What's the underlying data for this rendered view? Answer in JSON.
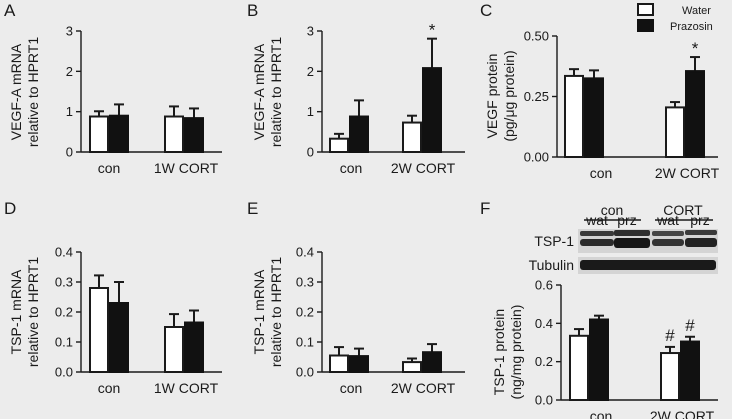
{
  "colors": {
    "background": "#ececec",
    "water": "#ffffff",
    "prazosin": "#111111",
    "ink": "#1a1a1a"
  },
  "legend": {
    "water_label": "Water",
    "prazosin_label": "Prazosin"
  },
  "chart_data": [
    {
      "panel": "A",
      "type": "bar",
      "ylabel": [
        "VEGF-A mRNA",
        "relative to HPRT1"
      ],
      "ylim": [
        0,
        3
      ],
      "yticks": [
        "0",
        "1",
        "2",
        "3"
      ],
      "categories": [
        "con",
        "1W CORT"
      ],
      "series": [
        {
          "name": "Water",
          "values": [
            0.88,
            0.88
          ],
          "errors": [
            0.13,
            0.25
          ]
        },
        {
          "name": "Prazosin",
          "values": [
            0.9,
            0.84
          ],
          "errors": [
            0.28,
            0.24
          ]
        }
      ],
      "annotations": []
    },
    {
      "panel": "B",
      "type": "bar",
      "ylabel": [
        "VEGF-A mRNA",
        "relative to HPRT1"
      ],
      "ylim": [
        0,
        3
      ],
      "yticks": [
        "0",
        "1",
        "2",
        "3"
      ],
      "categories": [
        "con",
        "2W CORT"
      ],
      "series": [
        {
          "name": "Water",
          "values": [
            0.33,
            0.73
          ],
          "errors": [
            0.12,
            0.17
          ]
        },
        {
          "name": "Prazosin",
          "values": [
            0.88,
            2.08
          ],
          "errors": [
            0.4,
            0.73
          ]
        }
      ],
      "annotations": [
        {
          "series": 1,
          "category": 1,
          "text": "*"
        }
      ]
    },
    {
      "panel": "C",
      "type": "bar",
      "ylabel": [
        "VEGF protein",
        "(pg/μg protein)"
      ],
      "ylim": [
        0,
        0.5
      ],
      "yticks": [
        "0.00",
        "0.25",
        "0.50"
      ],
      "categories": [
        "con",
        "2W CORT"
      ],
      "series": [
        {
          "name": "Water",
          "values": [
            0.335,
            0.205
          ],
          "errors": [
            0.028,
            0.022
          ]
        },
        {
          "name": "Prazosin",
          "values": [
            0.325,
            0.355
          ],
          "errors": [
            0.033,
            0.058
          ]
        }
      ],
      "annotations": [
        {
          "series": 1,
          "category": 1,
          "text": "*"
        }
      ]
    },
    {
      "panel": "D",
      "type": "bar",
      "ylabel": [
        "TSP-1 mRNA",
        "relative to HPRT1"
      ],
      "ylim": [
        0,
        0.4
      ],
      "yticks": [
        "0.0",
        "0.1",
        "0.2",
        "0.3",
        "0.4"
      ],
      "categories": [
        "con",
        "1W CORT"
      ],
      "series": [
        {
          "name": "Water",
          "values": [
            0.28,
            0.15
          ],
          "errors": [
            0.042,
            0.043
          ]
        },
        {
          "name": "Prazosin",
          "values": [
            0.23,
            0.165
          ],
          "errors": [
            0.07,
            0.04
          ]
        }
      ],
      "annotations": []
    },
    {
      "panel": "E",
      "type": "bar",
      "ylabel": [
        "TSP-1 mRNA",
        "relative to HPRT1"
      ],
      "ylim": [
        0,
        0.4
      ],
      "yticks": [
        "0.0",
        "0.1",
        "0.2",
        "0.3",
        "0.4"
      ],
      "categories": [
        "con",
        "2W CORT"
      ],
      "series": [
        {
          "name": "Water",
          "values": [
            0.055,
            0.033
          ],
          "errors": [
            0.028,
            0.012
          ]
        },
        {
          "name": "Prazosin",
          "values": [
            0.053,
            0.066
          ],
          "errors": [
            0.025,
            0.027
          ]
        }
      ],
      "annotations": []
    },
    {
      "panel": "F",
      "type": "bar",
      "ylabel": [
        "TSP-1 protein",
        "(ng/mg protein)"
      ],
      "ylim": [
        0,
        0.6
      ],
      "yticks": [
        "0.0",
        "0.2",
        "0.4",
        "0.6"
      ],
      "categories": [
        "con",
        "2W CORT"
      ],
      "series": [
        {
          "name": "Water",
          "values": [
            0.335,
            0.245
          ],
          "errors": [
            0.035,
            0.032
          ]
        },
        {
          "name": "Prazosin",
          "values": [
            0.42,
            0.305
          ],
          "errors": [
            0.02,
            0.025
          ]
        }
      ],
      "annotations": [
        {
          "series": 0,
          "category": 1,
          "text": "#"
        },
        {
          "series": 1,
          "category": 1,
          "text": "#"
        }
      ]
    }
  ],
  "blot": {
    "groups": [
      "con",
      "CORT"
    ],
    "lanes": [
      "wat",
      "prz",
      "wat",
      "prz"
    ],
    "rows": [
      "TSP-1",
      "Tubulin"
    ]
  }
}
